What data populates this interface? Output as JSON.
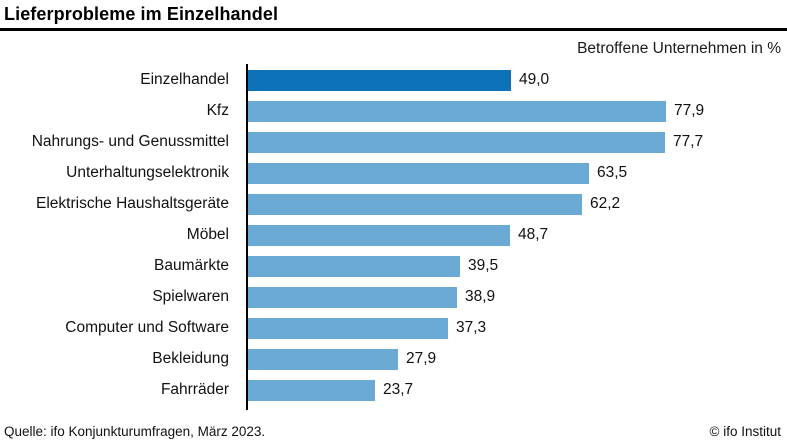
{
  "header": {
    "title": "Lieferprobleme im Einzelhandel",
    "subtitle": "Betroffene Unternehmen in %"
  },
  "footer": {
    "source": "Quelle: ifo Konjunkturumfragen, März 2023.",
    "copyright": "© ifo Institut"
  },
  "colors": {
    "highlight_bar": "#0e72b8",
    "bar": "#69a9d4",
    "axis": "#000000"
  },
  "chart_data": {
    "type": "bar",
    "orientation": "horizontal",
    "title": "Lieferprobleme im Einzelhandel",
    "xlabel": "Betroffene Unternehmen in %",
    "xlim": [
      0,
      90
    ],
    "grid": false,
    "legend": false,
    "highlight_index": 0,
    "categories": [
      "Einzelhandel",
      "Kfz",
      "Nahrungs- und Genussmittel",
      "Unterhaltungselektronik",
      "Elektrische Haushaltsgeräte",
      "Möbel",
      "Baumärkte",
      "Spielwaren",
      "Computer und Software",
      "Bekleidung",
      "Fahrräder"
    ],
    "values": [
      49.0,
      77.9,
      77.7,
      63.5,
      62.2,
      48.7,
      39.5,
      38.9,
      37.3,
      27.9,
      23.7
    ],
    "value_labels": [
      "49,0",
      "77,9",
      "77,7",
      "63,5",
      "62,2",
      "48,7",
      "39,5",
      "38,9",
      "37,3",
      "27,9",
      "23,7"
    ]
  }
}
